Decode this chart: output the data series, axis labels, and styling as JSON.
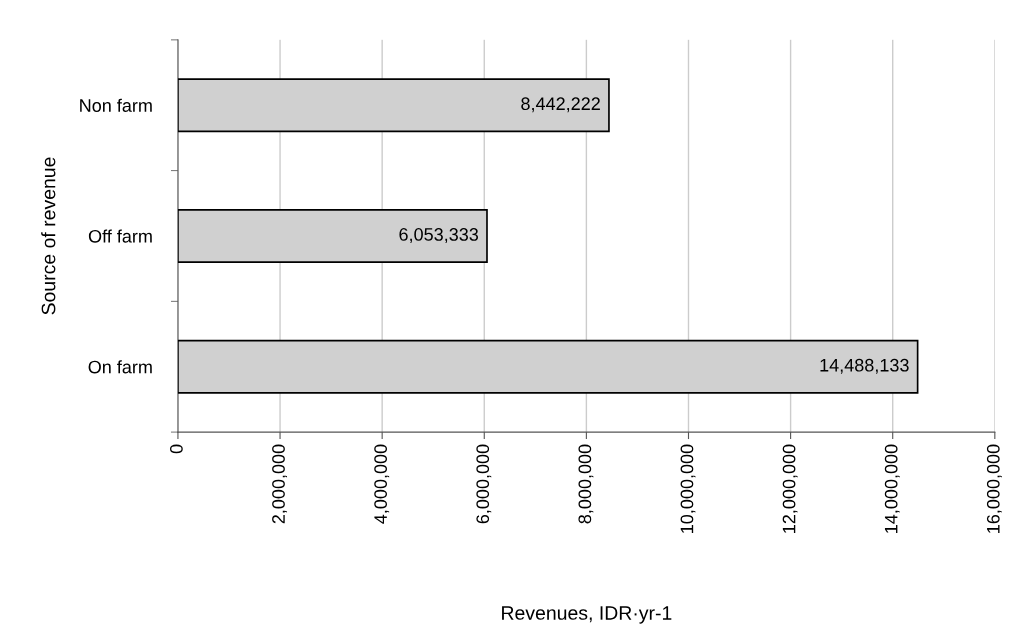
{
  "chart_data": {
    "type": "bar",
    "orientation": "horizontal",
    "categories": [
      "Non farm",
      "Off farm",
      "On farm"
    ],
    "values": [
      8442222,
      6053333,
      14488133
    ],
    "color": "#d0d0d0",
    "value_labels": [
      "8,442,222",
      "6,053,333",
      "14,488,133"
    ],
    "xlabel": "Revenues, IDR·yr-1",
    "ylabel": "Source of revenue",
    "xlim": [
      0,
      16000000
    ],
    "xticks": [
      0,
      {
        "value": 2000000,
        "label": "2,000,000"
      },
      {
        "value": 4000000,
        "label": "4,000,000"
      },
      {
        "value": 6000000,
        "label": "6,000,000"
      },
      {
        "value": 8000000,
        "label": "8,000,000"
      },
      {
        "value": 10000000,
        "label": "10,000,000"
      },
      {
        "value": 12000000,
        "label": "12,000,000"
      },
      {
        "value": 14000000,
        "label": "14,000,000"
      },
      {
        "value": 16000000,
        "label": "16,000,000"
      }
    ],
    "grid": "x"
  }
}
